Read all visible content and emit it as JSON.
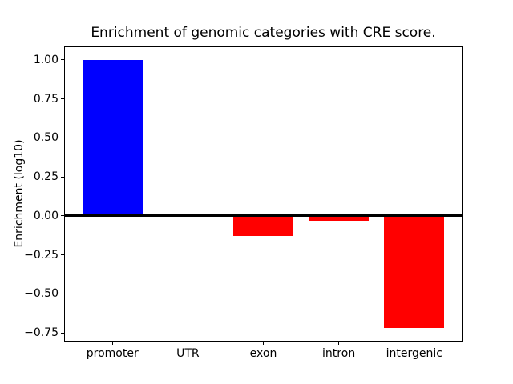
{
  "chart_data": {
    "type": "bar",
    "title": "Enrichment of genomic categories with CRE score.",
    "ylabel": "Enrichment (log10)",
    "xlabel": "",
    "categories": [
      "promoter",
      "UTR",
      "exon",
      "intron",
      "intergenic"
    ],
    "values": [
      1.0,
      0.01,
      -0.13,
      -0.03,
      -0.72
    ],
    "bar_colors": [
      "#0000ff",
      "#0000ff",
      "#ff0000",
      "#ff0000",
      "#ff0000"
    ],
    "positive_color": "#0000ff",
    "negative_color": "#ff0000",
    "yticks": [
      1.0,
      0.75,
      0.5,
      0.25,
      0.0,
      -0.25,
      -0.5,
      -0.75
    ],
    "ytick_labels": [
      "1.00",
      "0.75",
      "0.50",
      "0.25",
      "0.00",
      "−0.25",
      "−0.50",
      "−0.75"
    ],
    "ylim": [
      -0.806,
      1.086
    ],
    "xlim": [
      -0.64,
      4.64
    ],
    "bar_width": 0.8,
    "zero_line": true,
    "grid": false,
    "legend": null,
    "background_color": "#ffffff",
    "axis_color": "#000000"
  }
}
